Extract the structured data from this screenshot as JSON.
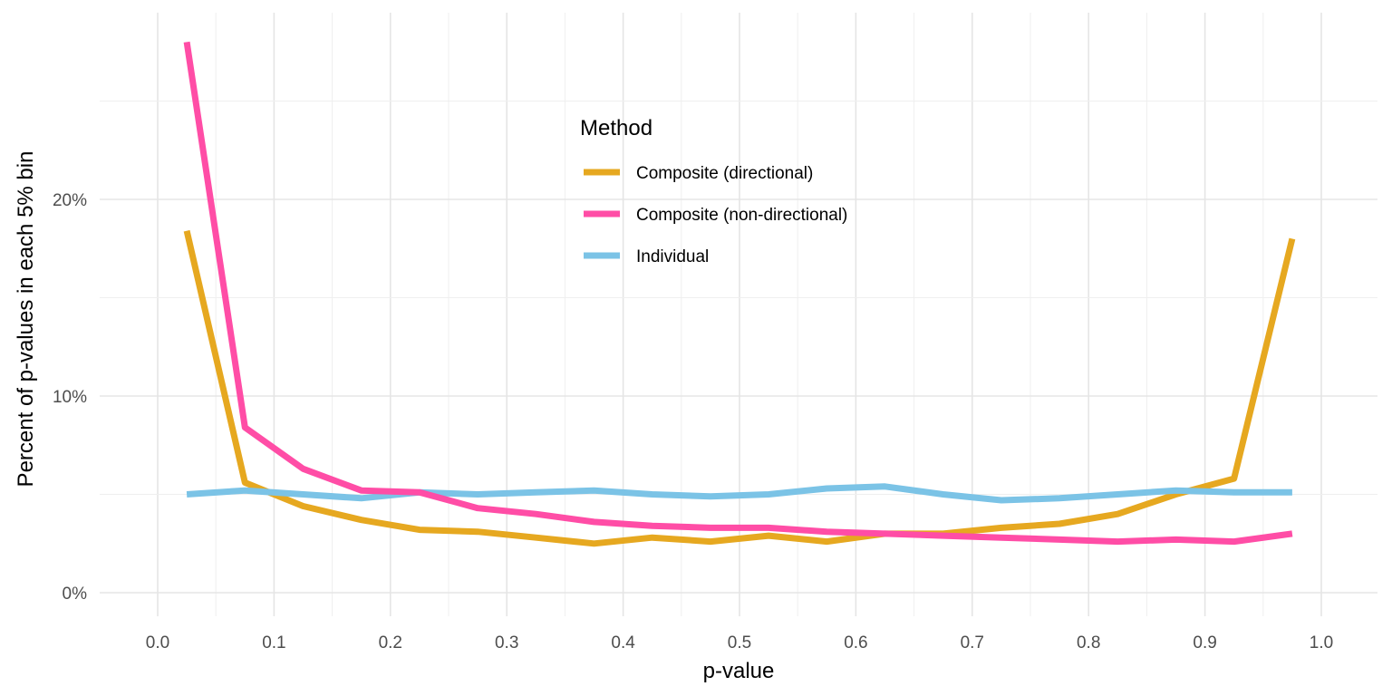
{
  "chart_data": {
    "type": "line",
    "xlabel": "p-value",
    "ylabel": "Percent of p-values in each 5% bin",
    "xlim": [
      0.0,
      1.0
    ],
    "ylim": [
      0,
      28
    ],
    "x_ticks": [
      "0.0",
      "0.1",
      "0.2",
      "0.3",
      "0.4",
      "0.5",
      "0.6",
      "0.7",
      "0.8",
      "0.9",
      "1.0"
    ],
    "y_ticks": [
      "0%",
      "10%",
      "20%"
    ],
    "grid": true,
    "legend": {
      "title": "Method",
      "placement": "top-center"
    },
    "x": [
      0.025,
      0.075,
      0.125,
      0.175,
      0.225,
      0.275,
      0.325,
      0.375,
      0.425,
      0.475,
      0.525,
      0.575,
      0.625,
      0.675,
      0.725,
      0.775,
      0.825,
      0.875,
      0.925,
      0.975
    ],
    "series": [
      {
        "name": "Composite (directional)",
        "color": "#E6A820",
        "values": [
          18.4,
          5.6,
          4.4,
          3.7,
          3.2,
          3.1,
          2.8,
          2.5,
          2.8,
          2.6,
          2.9,
          2.6,
          3.0,
          3.0,
          3.3,
          3.5,
          4.0,
          5.0,
          5.8,
          18.0
        ]
      },
      {
        "name": "Composite (non-directional)",
        "color": "#FF4DA6",
        "values": [
          28.0,
          8.4,
          6.3,
          5.2,
          5.1,
          4.3,
          4.0,
          3.6,
          3.4,
          3.3,
          3.3,
          3.1,
          3.0,
          2.9,
          2.8,
          2.7,
          2.6,
          2.7,
          2.6,
          3.0
        ]
      },
      {
        "name": "Individual",
        "color": "#7BC3E6",
        "values": [
          5.0,
          5.2,
          5.0,
          4.8,
          5.1,
          5.0,
          5.1,
          5.2,
          5.0,
          4.9,
          5.0,
          5.3,
          5.4,
          5.0,
          4.7,
          4.8,
          5.0,
          5.2,
          5.1,
          5.1
        ]
      }
    ]
  }
}
